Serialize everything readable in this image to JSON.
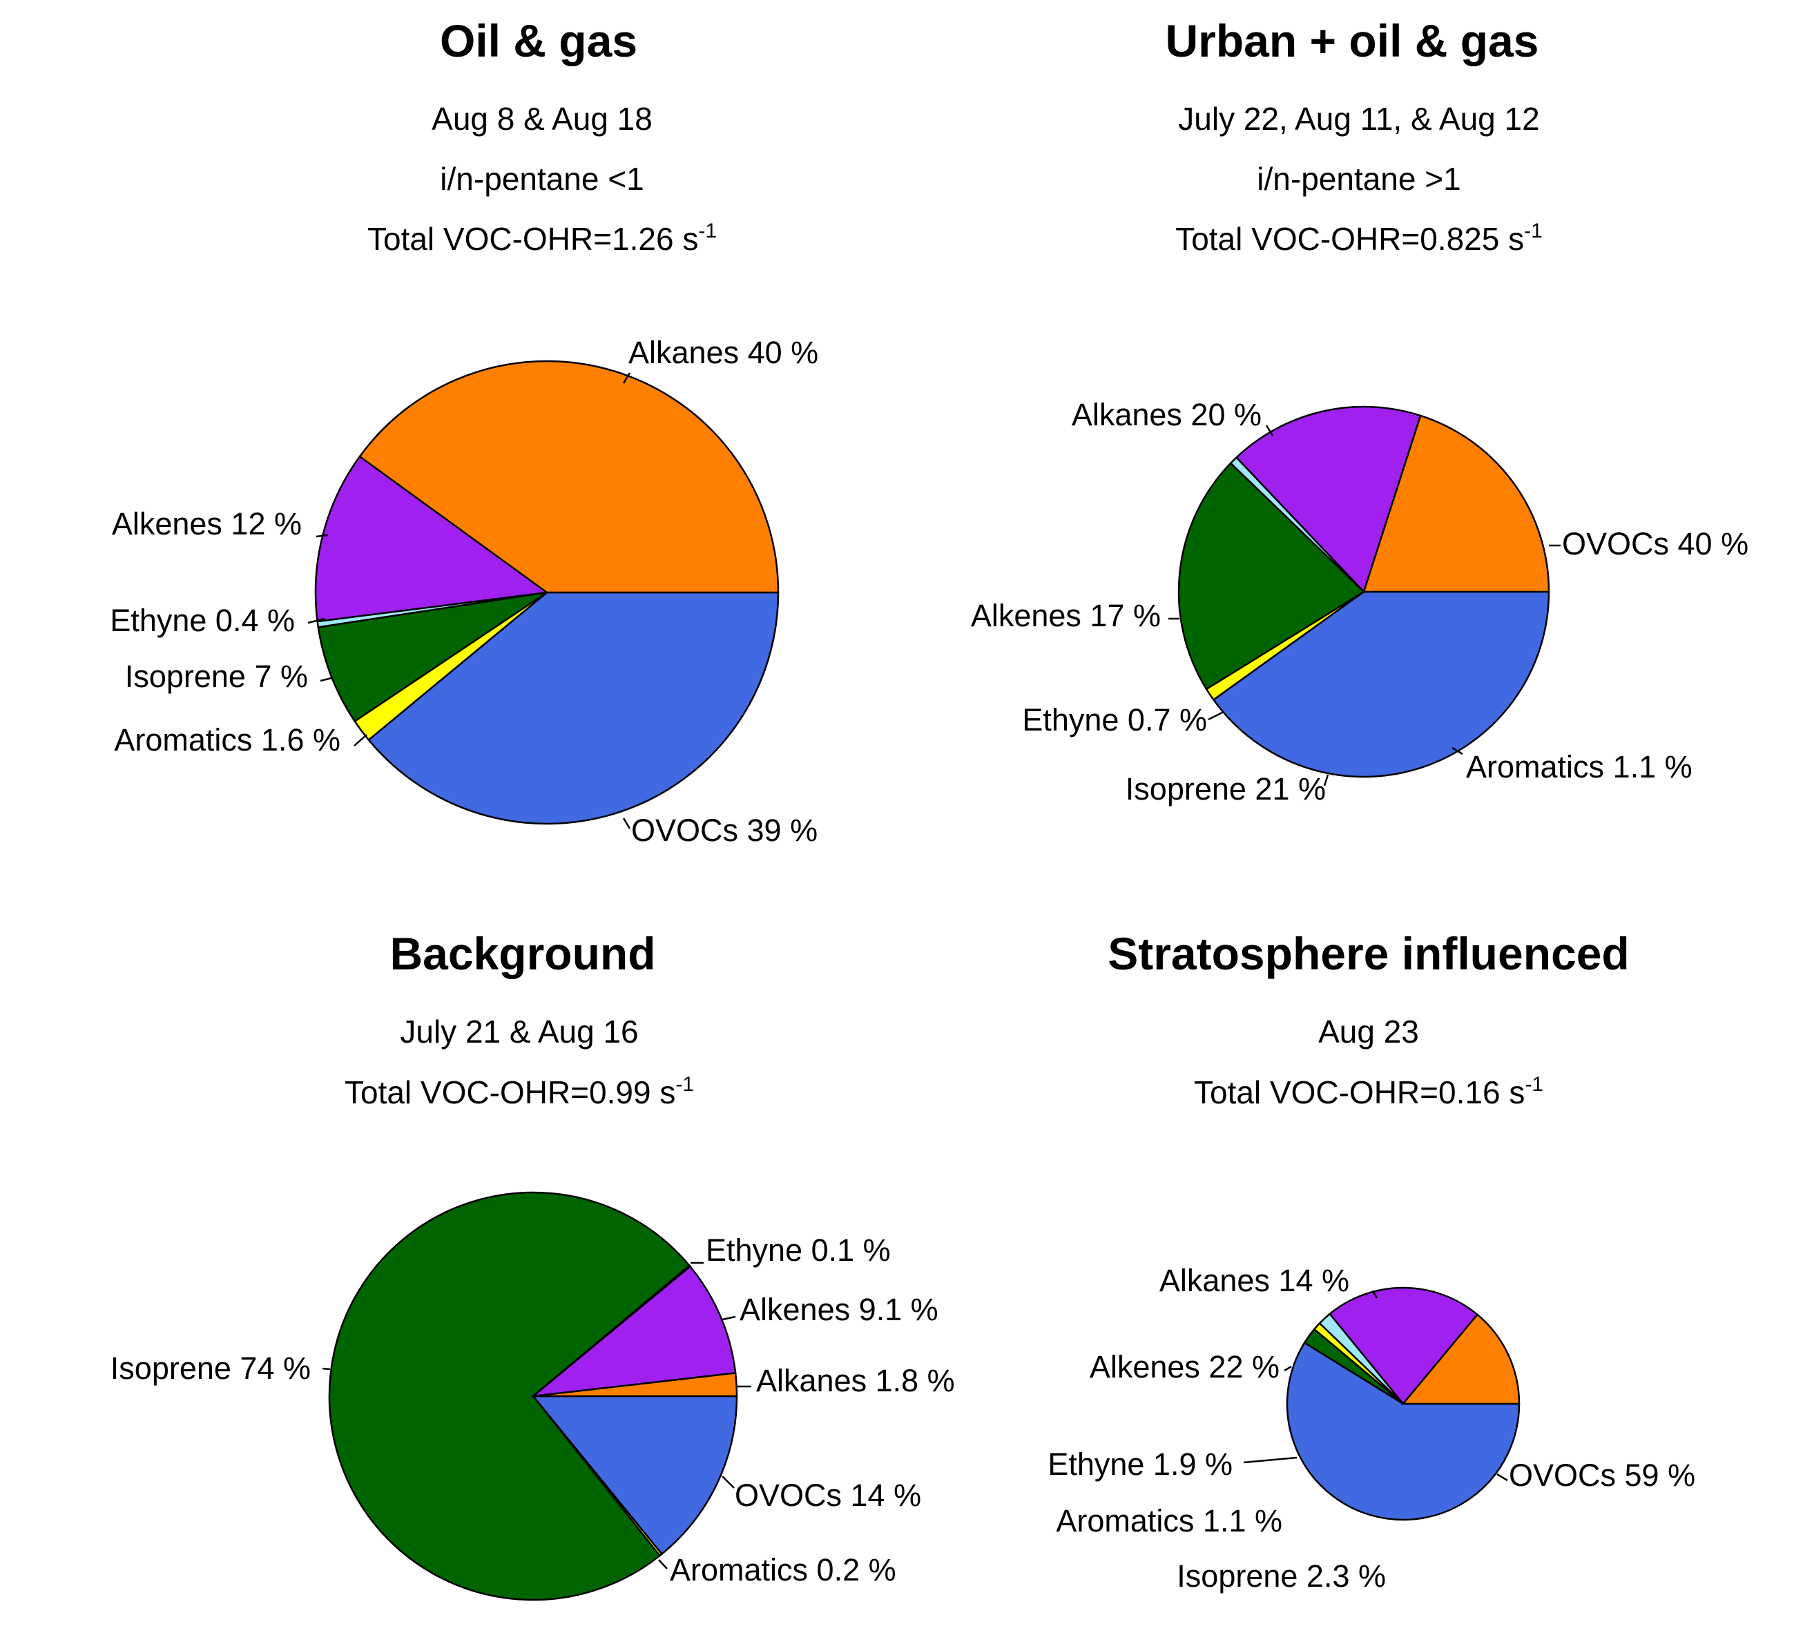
{
  "colors": {
    "OVOCs": "#4169e1",
    "Alkanes": "#ff8000",
    "Alkenes": "#a020f0",
    "Ethyne": "#9fe8f8",
    "Isoprene": "#006400",
    "Aromatics": "#ffff00"
  },
  "chart_data": [
    {
      "type": "pie",
      "title": "Oil & gas",
      "subtitle_lines": [
        "Aug 8 & Aug 18",
        "i/n-pentane <1"
      ],
      "ohr_text": "Total VOC-OHR=1.26 s",
      "ohr_unit_exponent": "-1",
      "total_voc_ohr": 1.26,
      "slices": [
        {
          "category": "OVOCs",
          "value": 39,
          "label": "OVOCs 39 %"
        },
        {
          "category": "Aromatics",
          "value": 1.6,
          "label": "Aromatics 1.6 %"
        },
        {
          "category": "Isoprene",
          "value": 7,
          "label": "Isoprene 7 %"
        },
        {
          "category": "Ethyne",
          "value": 0.4,
          "label": "Ethyne 0.4 %"
        },
        {
          "category": "Alkenes",
          "value": 12,
          "label": "Alkenes 12 %"
        },
        {
          "category": "Alkanes",
          "value": 40,
          "label": "Alkanes 40 %"
        }
      ]
    },
    {
      "type": "pie",
      "title": "Urban + oil & gas",
      "subtitle_lines": [
        "July 22, Aug 11, & Aug 12",
        "i/n-pentane >1"
      ],
      "ohr_text": "Total VOC-OHR=0.825 s",
      "ohr_unit_exponent": "-1",
      "total_voc_ohr": 0.825,
      "slices": [
        {
          "category": "OVOCs",
          "value": 40,
          "label": "OVOCs 40 %"
        },
        {
          "category": "Aromatics",
          "value": 1.1,
          "label": "Aromatics 1.1 %"
        },
        {
          "category": "Isoprene",
          "value": 21,
          "label": "Isoprene 21 %"
        },
        {
          "category": "Ethyne",
          "value": 0.7,
          "label": "Ethyne 0.7 %"
        },
        {
          "category": "Alkenes",
          "value": 17,
          "label": "Alkenes 17 %"
        },
        {
          "category": "Alkanes",
          "value": 20,
          "label": "Alkanes 20 %"
        }
      ]
    },
    {
      "type": "pie",
      "title": "Background",
      "subtitle_lines": [
        "July 21 & Aug 16"
      ],
      "ohr_text": "Total VOC-OHR=0.99 s",
      "ohr_unit_exponent": "-1",
      "total_voc_ohr": 0.99,
      "slices": [
        {
          "category": "OVOCs",
          "value": 14,
          "label": "OVOCs 14 %"
        },
        {
          "category": "Aromatics",
          "value": 0.2,
          "label": "Aromatics  0.2 %"
        },
        {
          "category": "Isoprene",
          "value": 74,
          "label": "Isoprene 74 %"
        },
        {
          "category": "Ethyne",
          "value": 0.1,
          "label": "Ethyne 0.1 %"
        },
        {
          "category": "Alkenes",
          "value": 9.1,
          "label": "Alkenes 9.1 %"
        },
        {
          "category": "Alkanes",
          "value": 1.8,
          "label": "Alkanes 1.8 %"
        }
      ]
    },
    {
      "type": "pie",
      "title": "Stratosphere influenced",
      "subtitle_lines": [
        "Aug 23"
      ],
      "ohr_text": "Total VOC-OHR=0.16 s",
      "ohr_unit_exponent": "-1",
      "total_voc_ohr": 0.16,
      "slices": [
        {
          "category": "OVOCs",
          "value": 59,
          "label": "OVOCs 59 %"
        },
        {
          "category": "Isoprene",
          "value": 2.3,
          "label": "Isoprene 2.3 %"
        },
        {
          "category": "Aromatics",
          "value": 1.1,
          "label": "Aromatics 1.1 %"
        },
        {
          "category": "Ethyne",
          "value": 1.9,
          "label": "Ethyne 1.9 %"
        },
        {
          "category": "Alkenes",
          "value": 22,
          "label": "Alkenes 22 %"
        },
        {
          "category": "Alkanes",
          "value": 14,
          "label": "Alkanes 14 %"
        }
      ]
    }
  ]
}
